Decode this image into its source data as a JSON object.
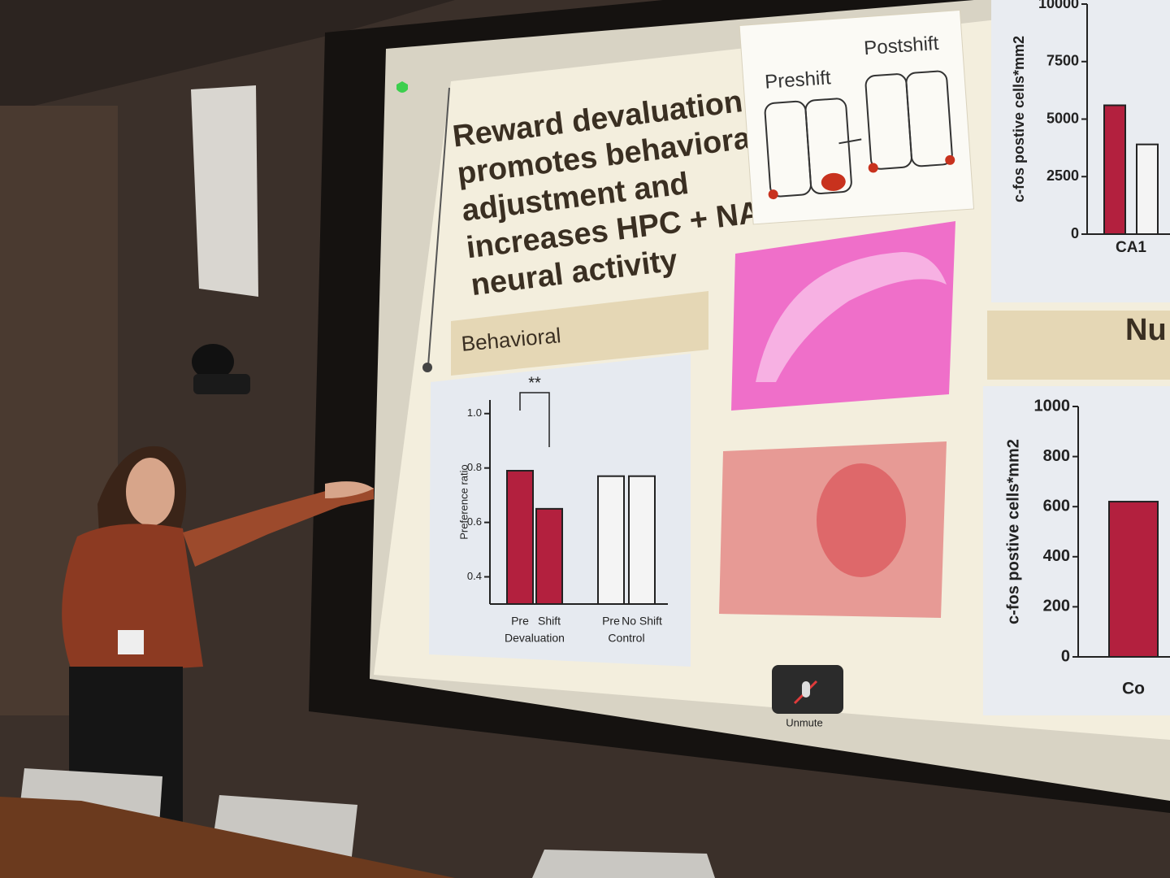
{
  "slide": {
    "title_lines": [
      "Reward devaluation",
      "promotes behavioral",
      "adjustment and",
      "increases HPC + NAc",
      "neural activity"
    ],
    "diagram": {
      "left_label": "Preshift",
      "right_label": "Postshift"
    },
    "section_header": "Behavioral",
    "right_section_header": "Nu"
  },
  "behavioral_chart": {
    "y_label": "Preference ratio",
    "ylim": [
      0.3,
      1.05
    ],
    "yticks": [
      {
        "value": 1,
        "label": "1.0"
      },
      0.8,
      0.6,
      0.4
    ],
    "significance": "**",
    "groups": [
      {
        "label": "Devaluation",
        "categories": [
          "Pre",
          "Shift"
        ],
        "values": [
          0.79,
          0.65
        ],
        "colors": [
          "#b3203e",
          "#b3203e"
        ]
      },
      {
        "label": "Control",
        "categories": [
          "Pre",
          "No Shift"
        ],
        "values": [
          0.77,
          0.77
        ],
        "colors": [
          "#f4f4f4",
          "#f4f4f4"
        ]
      }
    ]
  },
  "ca1_chart": {
    "y_label": "c-fos postive cells*mm2",
    "ylim": [
      0,
      10000
    ],
    "yticks": [
      10000,
      7500,
      5000,
      2500,
      0
    ],
    "groups": [
      {
        "label": "CA1",
        "values": [
          5600,
          3900
        ],
        "colors": [
          "#b3203e",
          "#f4f4f4"
        ]
      }
    ]
  },
  "nac_chart": {
    "y_label": "c-fos postive cells*mm2",
    "ylim": [
      0,
      1000
    ],
    "yticks": [
      1000,
      800,
      600,
      400,
      200,
      0
    ],
    "groups": [
      {
        "label": "Co",
        "values": [
          620
        ],
        "colors": [
          "#b3203e"
        ]
      }
    ]
  },
  "meeting_controls": {
    "unmute": "Unmute"
  }
}
